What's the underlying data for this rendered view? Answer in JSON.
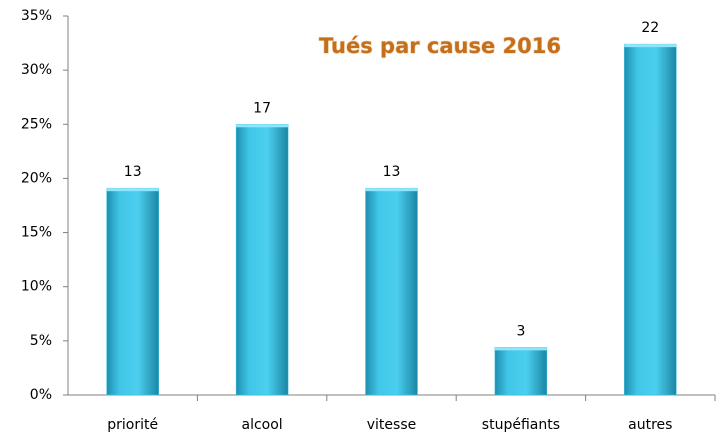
{
  "chart_data": {
    "type": "bar",
    "title": "Tués par cause 2016",
    "categories": [
      "priorité",
      "alcool",
      "vitesse",
      "stupéfiants",
      "autres"
    ],
    "values": [
      19.1,
      25,
      19.1,
      4.4,
      32.4
    ],
    "counts": [
      13,
      17,
      13,
      3,
      22
    ],
    "color": "#3cc3e6",
    "ylim": [
      0,
      35
    ],
    "yticks": [
      {
        "value": 0,
        "label": "0%"
      },
      {
        "value": 5,
        "label": "5%"
      },
      {
        "value": 10,
        "label": "10%"
      },
      {
        "value": 15,
        "label": "15%"
      },
      {
        "value": 20,
        "label": "20%"
      },
      {
        "value": 25,
        "label": "25%"
      },
      {
        "value": 30,
        "label": "30%"
      },
      {
        "value": 35,
        "label": "35%"
      }
    ],
    "grid": false
  }
}
